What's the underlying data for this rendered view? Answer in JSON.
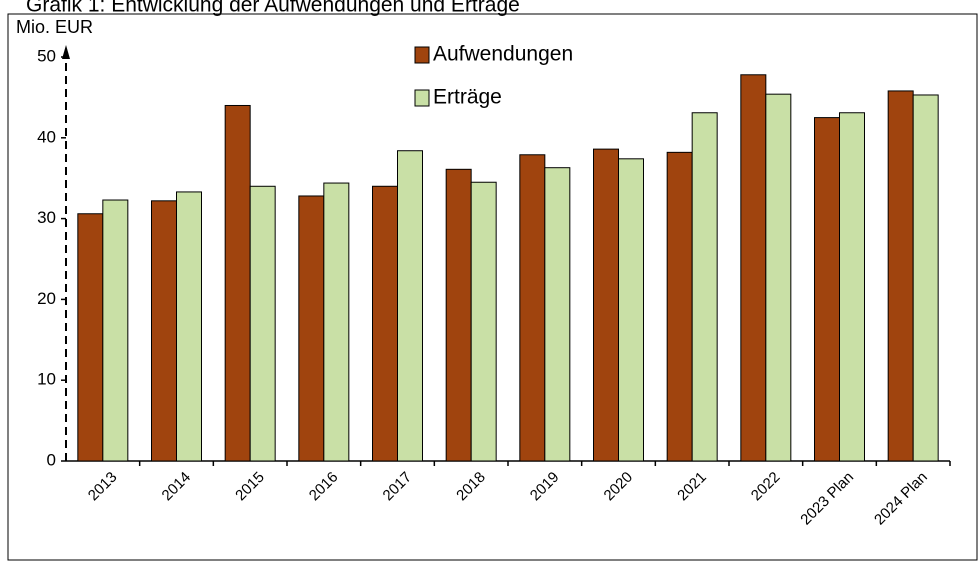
{
  "chart_data": {
    "type": "bar",
    "title": "Grafik 1: Entwicklung der Aufwendungen und Erträge",
    "y_label": "Mio. EUR",
    "categories": [
      "2013",
      "2014",
      "2015",
      "2016",
      "2017",
      "2018",
      "2019",
      "2020",
      "2021",
      "2022",
      "2023 Plan",
      "2024 Plan"
    ],
    "series": [
      {
        "name": "Aufwendungen",
        "color": "#a0440e",
        "values": [
          30.6,
          32.2,
          44.0,
          32.8,
          34.0,
          36.1,
          37.9,
          38.6,
          38.2,
          47.8,
          42.5,
          45.8
        ]
      },
      {
        "name": "Erträge",
        "color": "#c9e0a6",
        "values": [
          32.3,
          33.3,
          34.0,
          34.4,
          38.4,
          34.5,
          36.3,
          37.4,
          43.1,
          45.4,
          43.1,
          45.3
        ]
      }
    ],
    "ylim": [
      0,
      50
    ],
    "yticks": [
      0,
      10,
      20,
      30,
      40,
      50
    ]
  }
}
